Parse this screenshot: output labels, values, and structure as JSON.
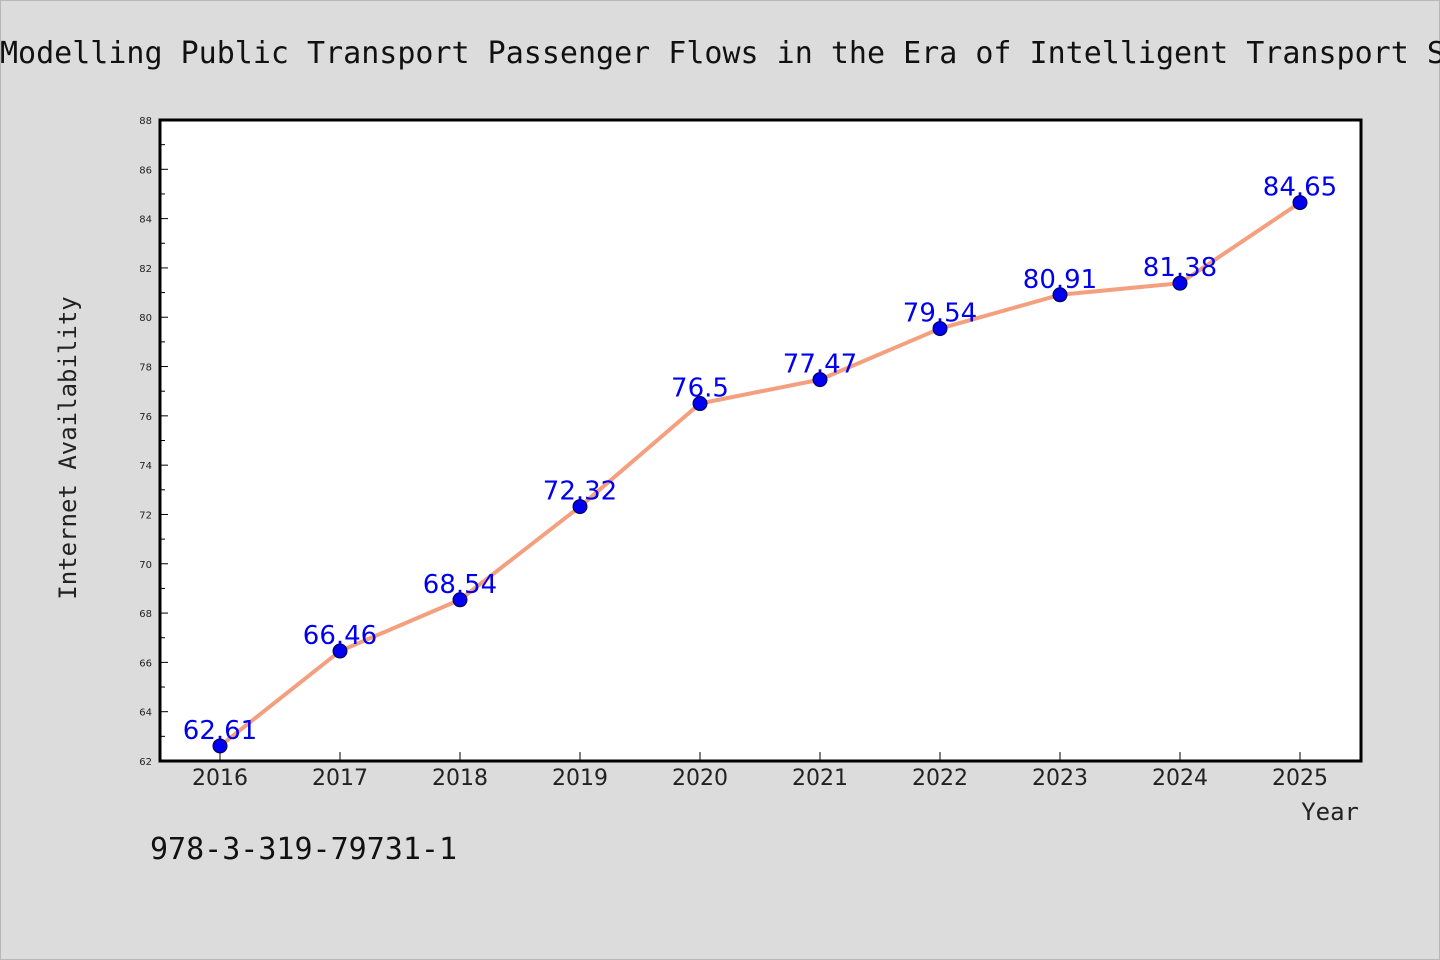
{
  "chart_data": {
    "type": "line",
    "title": "Modelling Public Transport Passenger Flows in the Era of Intelligent Transport Systems",
    "xlabel": "Year",
    "ylabel": "Internet Availability",
    "categories": [
      "2016",
      "2017",
      "2018",
      "2019",
      "2020",
      "2021",
      "2022",
      "2023",
      "2024",
      "2025"
    ],
    "series": [
      {
        "values": [
          62.61,
          66.46,
          68.54,
          72.32,
          76.5,
          77.47,
          79.54,
          80.91,
          81.38,
          84.65
        ],
        "labels": [
          "62.61",
          "66.46",
          "68.54",
          "72.32",
          "76.5",
          "77.47",
          "79.54",
          "80.91",
          "81.38",
          "84.65"
        ],
        "line_color": "#f4a07f",
        "marker_color": "#0000ee",
        "label_color": "#0000ee"
      }
    ],
    "ylim": [
      62,
      88
    ],
    "yticks": [
      "62",
      "64",
      "66",
      "68",
      "70",
      "72",
      "74",
      "76",
      "78",
      "80",
      "82",
      "84",
      "86",
      "88"
    ],
    "grid": false,
    "data_labels": true
  },
  "footer": {
    "isbn": "978-3-319-79731-1"
  }
}
